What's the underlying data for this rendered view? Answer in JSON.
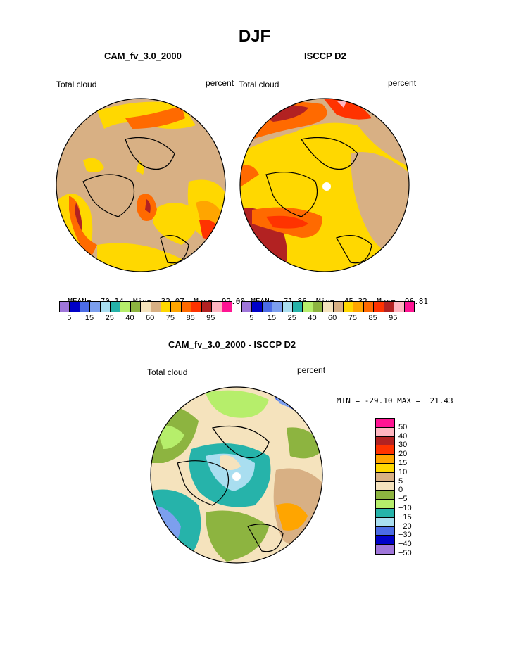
{
  "figure_title": "DJF",
  "panels": [
    {
      "title": "CAM_fv_3.0_2000",
      "left_label": "Total cloud",
      "right_label": "percent",
      "stats": {
        "mean_label": "MEAN=",
        "mean": "70.14",
        "min_label": "Min=",
        "min": "32.07",
        "max_label": "Max=",
        "max": "92.00"
      }
    },
    {
      "title": "ISCCP D2",
      "left_label": "Total cloud",
      "right_label": "percent",
      "stats": {
        "mean_label": "MEAN=",
        "mean": "71.86",
        "min_label": "Min=",
        "min": "45.32",
        "max_label": "Max=",
        "max": "96.81"
      }
    },
    {
      "title": "CAM_fv_3.0_2000 - ISCCP D2",
      "left_label": "Total cloud",
      "right_label": "percent",
      "minmax_text": "MIN = -29.10 MAX =  21.43"
    }
  ],
  "colorbar_abs": {
    "colors": [
      "#9f76da",
      "#0000c8",
      "#4b6be5",
      "#7c9fee",
      "#a9def0",
      "#26b3aa",
      "#b6ee6b",
      "#8db440",
      "#f5e3bd",
      "#d8b084",
      "#ffd800",
      "#ffa500",
      "#ff6a00",
      "#ff3300",
      "#b22222",
      "#ffb6c1",
      "#ff1493"
    ],
    "tick_labels": [
      "5",
      "15",
      "25",
      "40",
      "60",
      "75",
      "85",
      "95"
    ]
  },
  "colorbar_diff": {
    "colors": [
      "#ff1493",
      "#ffb6c1",
      "#b22222",
      "#ff3300",
      "#ffa500",
      "#ffd800",
      "#d8b084",
      "#f5e3bd",
      "#8db440",
      "#b6ee6b",
      "#26b3aa",
      "#a9def0",
      "#4b6be5",
      "#0000c8",
      "#9f76da"
    ],
    "labels": [
      "50",
      "40",
      "30",
      "20",
      "15",
      "10",
      "5",
      "0",
      "−5",
      "−10",
      "−15",
      "−20",
      "−30",
      "−40",
      "−50"
    ]
  }
}
